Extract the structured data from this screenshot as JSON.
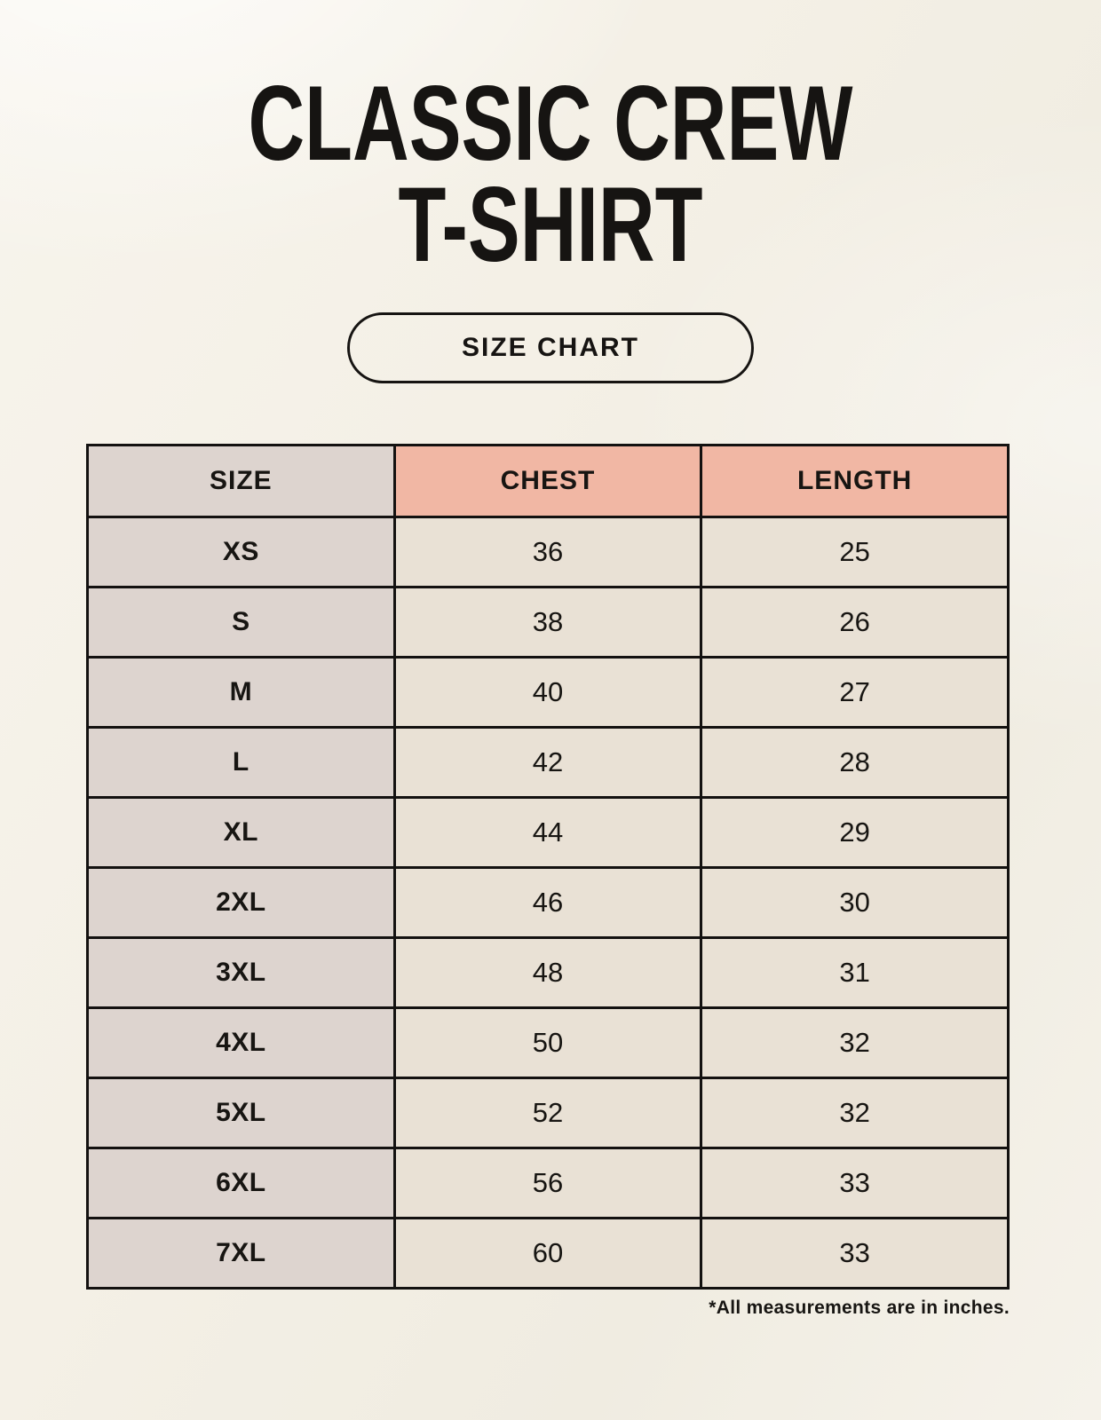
{
  "header": {
    "title_line1": "CLASSIC CREW",
    "title_line2": "T-SHIRT",
    "badge_label": "SIZE CHART"
  },
  "chart_data": {
    "type": "table",
    "title": "SIZE CHART",
    "columns": [
      "SIZE",
      "CHEST",
      "LENGTH"
    ],
    "rows": [
      [
        "XS",
        "36",
        "25"
      ],
      [
        "S",
        "38",
        "26"
      ],
      [
        "M",
        "40",
        "27"
      ],
      [
        "L",
        "42",
        "28"
      ],
      [
        "XL",
        "44",
        "29"
      ],
      [
        "2XL",
        "46",
        "30"
      ],
      [
        "3XL",
        "48",
        "31"
      ],
      [
        "4XL",
        "50",
        "32"
      ],
      [
        "5XL",
        "52",
        "32"
      ],
      [
        "6XL",
        "56",
        "33"
      ],
      [
        "7XL",
        "60",
        "33"
      ]
    ],
    "units_note": "*All measurements are in inches."
  },
  "colors": {
    "background": "#f4f0e6",
    "accent_header": "#f1b7a4",
    "size_column": "#ddd4cf",
    "data_cell": "#e9e1d5",
    "border": "#131110",
    "text": "#171512"
  }
}
